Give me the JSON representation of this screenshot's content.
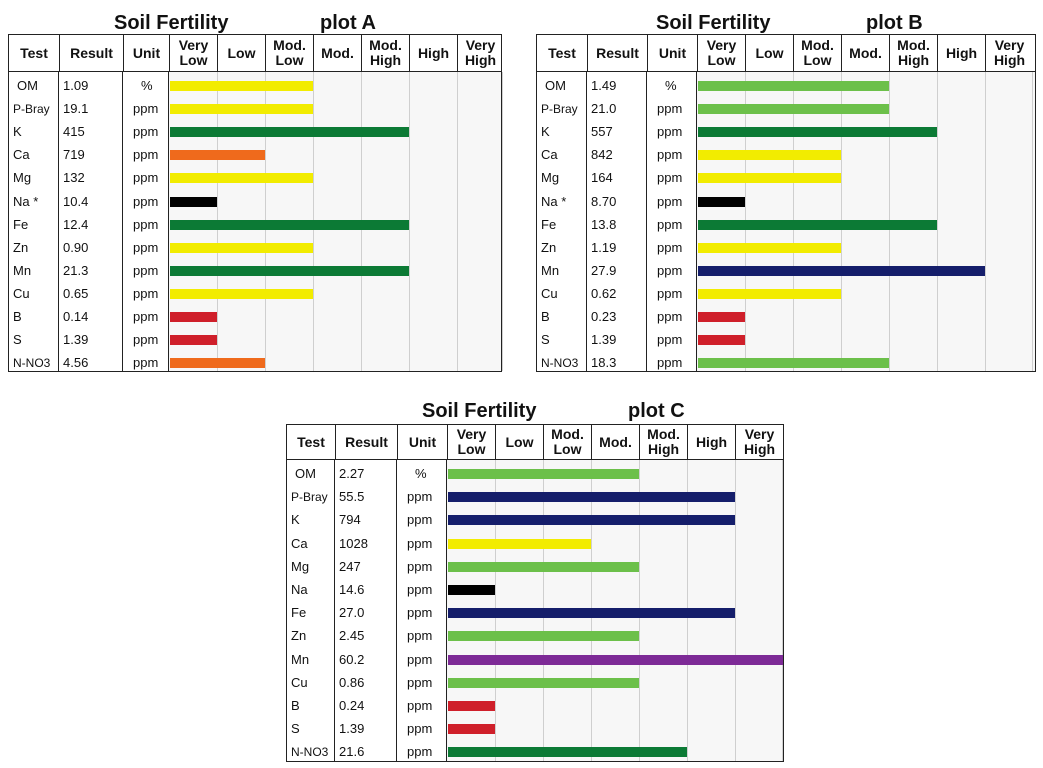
{
  "header": {
    "col_test": "Test",
    "col_result": "Result",
    "col_unit": "Unit"
  },
  "chart_data": [
    {
      "type": "bar",
      "orientation": "horizontal",
      "title": "Soil Fertility",
      "plot": "plot A",
      "levels": [
        "Very Low",
        "Low",
        "Mod. Low",
        "Mod.",
        "Mod. High",
        "High",
        "Very High"
      ],
      "rows": [
        {
          "test": "OM",
          "result": "1.09",
          "unit": "%",
          "level": 3,
          "color": "#f2ec00"
        },
        {
          "test": "P-Bray",
          "result": "19.1",
          "unit": "ppm",
          "level": 3,
          "color": "#f2ec00"
        },
        {
          "test": "K",
          "result": "415",
          "unit": "ppm",
          "level": 5,
          "color": "#0c7a35"
        },
        {
          "test": "Ca",
          "result": "719",
          "unit": "ppm",
          "level": 2,
          "color": "#ef6a1c"
        },
        {
          "test": "Mg",
          "result": "132",
          "unit": "ppm",
          "level": 3,
          "color": "#f2ec00"
        },
        {
          "test": "Na *",
          "result": "10.4",
          "unit": "ppm",
          "level": 1,
          "color": "#000000"
        },
        {
          "test": "Fe",
          "result": "12.4",
          "unit": "ppm",
          "level": 5,
          "color": "#0c7a35"
        },
        {
          "test": "Zn",
          "result": "0.90",
          "unit": "ppm",
          "level": 3,
          "color": "#f2ec00"
        },
        {
          "test": "Mn",
          "result": "21.3",
          "unit": "ppm",
          "level": 5,
          "color": "#0c7a35"
        },
        {
          "test": "Cu",
          "result": "0.65",
          "unit": "ppm",
          "level": 3,
          "color": "#f2ec00"
        },
        {
          "test": "B",
          "result": "0.14",
          "unit": "ppm",
          "level": 1,
          "color": "#cf1f2a"
        },
        {
          "test": "S",
          "result": "1.39",
          "unit": "ppm",
          "level": 1,
          "color": "#cf1f2a"
        },
        {
          "test": "N-NO3",
          "result": "4.56",
          "unit": "ppm",
          "level": 2,
          "color": "#ef6a1c"
        }
      ]
    },
    {
      "type": "bar",
      "orientation": "horizontal",
      "title": "Soil Fertility",
      "plot": "plot B",
      "levels": [
        "Very Low",
        "Low",
        "Mod. Low",
        "Mod.",
        "Mod. High",
        "High",
        "Very High"
      ],
      "rows": [
        {
          "test": "OM",
          "result": "1.49",
          "unit": "%",
          "level": 4,
          "color": "#6cc04a"
        },
        {
          "test": "P-Bray",
          "result": "21.0",
          "unit": "ppm",
          "level": 4,
          "color": "#6cc04a"
        },
        {
          "test": "K",
          "result": "557",
          "unit": "ppm",
          "level": 5,
          "color": "#0c7a35"
        },
        {
          "test": "Ca",
          "result": "842",
          "unit": "ppm",
          "level": 3,
          "color": "#f2ec00"
        },
        {
          "test": "Mg",
          "result": "164",
          "unit": "ppm",
          "level": 3,
          "color": "#f2ec00"
        },
        {
          "test": "Na *",
          "result": "8.70",
          "unit": "ppm",
          "level": 1,
          "color": "#000000"
        },
        {
          "test": "Fe",
          "result": "13.8",
          "unit": "ppm",
          "level": 5,
          "color": "#0c7a35"
        },
        {
          "test": "Zn",
          "result": "1.19",
          "unit": "ppm",
          "level": 3,
          "color": "#f2ec00"
        },
        {
          "test": "Mn",
          "result": "27.9",
          "unit": "ppm",
          "level": 6,
          "color": "#151e6b"
        },
        {
          "test": "Cu",
          "result": "0.62",
          "unit": "ppm",
          "level": 3,
          "color": "#f2ec00"
        },
        {
          "test": "B",
          "result": "0.23",
          "unit": "ppm",
          "level": 1,
          "color": "#cf1f2a"
        },
        {
          "test": "S",
          "result": "1.39",
          "unit": "ppm",
          "level": 1,
          "color": "#cf1f2a"
        },
        {
          "test": "N-NO3",
          "result": "18.3",
          "unit": "ppm",
          "level": 4,
          "color": "#6cc04a"
        }
      ]
    },
    {
      "type": "bar",
      "orientation": "horizontal",
      "title": "Soil Fertility",
      "plot": "plot C",
      "levels": [
        "Very Low",
        "Low",
        "Mod. Low",
        "Mod.",
        "Mod. High",
        "High",
        "Very High"
      ],
      "rows": [
        {
          "test": "OM",
          "result": "2.27",
          "unit": "%",
          "level": 4,
          "color": "#6cc04a"
        },
        {
          "test": "P-Bray",
          "result": "55.5",
          "unit": "ppm",
          "level": 6,
          "color": "#151e6b"
        },
        {
          "test": "K",
          "result": "794",
          "unit": "ppm",
          "level": 6,
          "color": "#151e6b"
        },
        {
          "test": "Ca",
          "result": "1028",
          "unit": "ppm",
          "level": 3,
          "color": "#f2ec00"
        },
        {
          "test": "Mg",
          "result": "247",
          "unit": "ppm",
          "level": 4,
          "color": "#6cc04a"
        },
        {
          "test": "Na",
          "result": "14.6",
          "unit": "ppm",
          "level": 1,
          "color": "#000000"
        },
        {
          "test": "Fe",
          "result": "27.0",
          "unit": "ppm",
          "level": 6,
          "color": "#151e6b"
        },
        {
          "test": "Zn",
          "result": "2.45",
          "unit": "ppm",
          "level": 4,
          "color": "#6cc04a"
        },
        {
          "test": "Mn",
          "result": "60.2",
          "unit": "ppm",
          "level": 7,
          "color": "#7d2a96"
        },
        {
          "test": "Cu",
          "result": "0.86",
          "unit": "ppm",
          "level": 4,
          "color": "#6cc04a"
        },
        {
          "test": "B",
          "result": "0.24",
          "unit": "ppm",
          "level": 1,
          "color": "#cf1f2a"
        },
        {
          "test": "S",
          "result": "1.39",
          "unit": "ppm",
          "level": 1,
          "color": "#cf1f2a"
        },
        {
          "test": "N-NO3",
          "result": "21.6",
          "unit": "ppm",
          "level": 5,
          "color": "#0c7a35"
        }
      ]
    }
  ]
}
